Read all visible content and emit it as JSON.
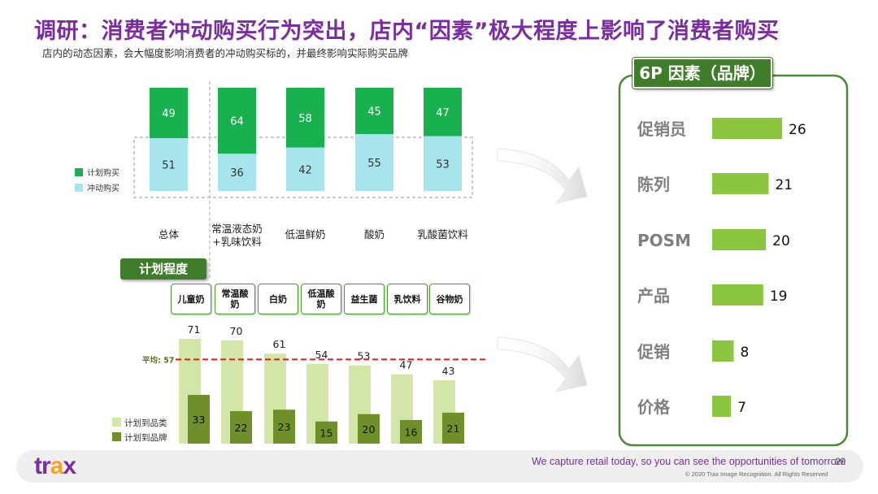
{
  "header": {
    "title": "调研：消费者冲动购买行为突出，店内“因素”极大程度上影响了消费者购买",
    "subtitle": "店内的动态因素，会大幅度影响消费者的冲动购买标的，并最终影响实际购买品牌"
  },
  "colors": {
    "title": "#7a2d9e",
    "planned": "#19b050",
    "impulse": "#a8e4ee",
    "category_light": "#d3e6a8",
    "brand_dark": "#6f8f2a",
    "factor_bar": "#8cc63f",
    "average_line": "#e02020",
    "frame_green": "#4a8a35"
  },
  "chart_data": [
    {
      "type": "bar",
      "stacked": true,
      "categories": [
        "总体",
        "常温液态奶\n+乳味饮料",
        "低温鲜奶",
        "酸奶",
        "乳酸菌饮料"
      ],
      "category_lines": [
        [
          "总体"
        ],
        [
          "常温液态奶",
          "+乳味饮料"
        ],
        [
          "低温鲜奶"
        ],
        [
          "酸奶"
        ],
        [
          "乳酸菌饮料"
        ]
      ],
      "series": [
        {
          "name": "计划购买",
          "values": [
            49,
            64,
            58,
            45,
            47
          ]
        },
        {
          "name": "冲动购买",
          "values": [
            51,
            36,
            42,
            55,
            53
          ]
        }
      ],
      "ylim": [
        0,
        100
      ],
      "legend": "left"
    },
    {
      "type": "bar",
      "title": "计划程度",
      "categories": [
        "儿童奶",
        "常温酸奶",
        "白奶",
        "低温酸奶",
        "益生菌",
        "乳饮料",
        "谷物奶"
      ],
      "category_lines": [
        [
          "儿童奶"
        ],
        [
          "常温酸",
          "奶"
        ],
        [
          "白奶"
        ],
        [
          "低温酸",
          "奶"
        ],
        [
          "益生菌"
        ],
        [
          "乳饮料"
        ],
        [
          "谷物奶"
        ]
      ],
      "series": [
        {
          "name": "计划到品类",
          "values": [
            71,
            70,
            61,
            54,
            53,
            47,
            43
          ]
        },
        {
          "name": "计划到品牌",
          "values": [
            33,
            22,
            23,
            15,
            20,
            16,
            21
          ]
        }
      ],
      "average": {
        "label": "平均: 57",
        "value": 57
      },
      "ylim": [
        0,
        75
      ],
      "legend": "bottom-left"
    },
    {
      "type": "bar",
      "orientation": "horizontal",
      "title": "6P 因素（品牌）",
      "categories": [
        "促销员",
        "陈列",
        "POSM",
        "产品",
        "促销",
        "价格"
      ],
      "values": [
        26,
        21,
        20,
        19,
        8,
        7
      ],
      "xlim": [
        0,
        28
      ]
    }
  ],
  "footer": {
    "logo_pre": "tr",
    "logo_a": "a",
    "logo_post": "x",
    "tagline": "We capture retail today, so you can see the opportunities of tomorrow.",
    "page_number": "29",
    "copyright": "© 2020 Trax Image Recognition. All Rights Reserved"
  }
}
